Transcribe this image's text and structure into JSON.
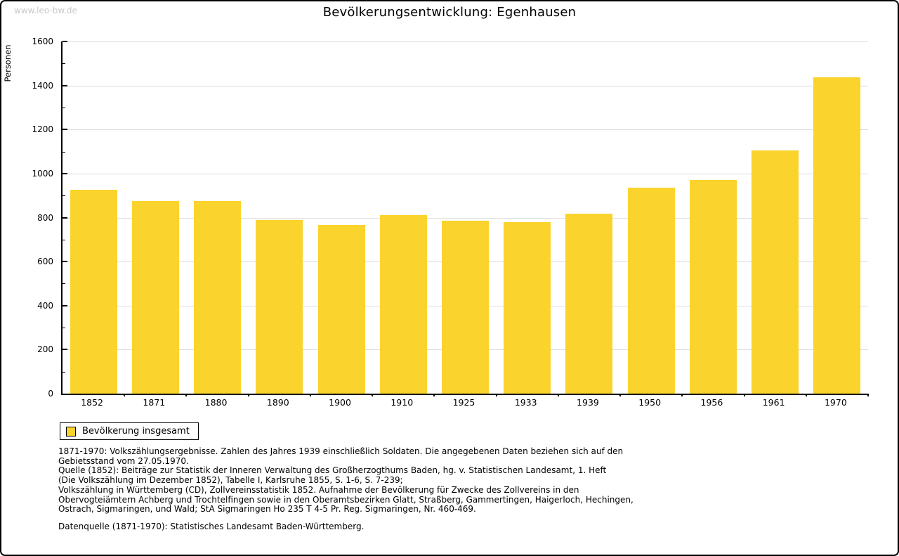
{
  "page": {
    "watermark": "www.leo-bw.de"
  },
  "chart_data": {
    "type": "bar",
    "title": "Bevölkerungsentwicklung: Egenhausen",
    "xlabel": "",
    "ylabel": "Personen",
    "categories": [
      "1852",
      "1871",
      "1880",
      "1890",
      "1900",
      "1910",
      "1925",
      "1933",
      "1939",
      "1950",
      "1956",
      "1961",
      "1970"
    ],
    "values": [
      925,
      875,
      875,
      790,
      765,
      812,
      786,
      780,
      818,
      937,
      971,
      1105,
      1437
    ],
    "ylim": [
      0,
      1600
    ],
    "ytick_interval": 200,
    "ytick_minor_interval": 100,
    "grid": "horizontal-only",
    "legend_position": "bottom-left",
    "bar_color": "#fbd32d",
    "gridline_color": "#dcdcdc",
    "legend": {
      "label": "Bevölkerung insgesamt"
    }
  },
  "footnotes": {
    "lines": [
      "1871-1970: Volkszählungsergebnisse. Zahlen des Jahres 1939 einschließlich Soldaten. Die angegebenen Daten beziehen sich auf den",
      "Gebietsstand vom 27.05.1970.",
      "Quelle (1852): Beiträge zur Statistik der Inneren Verwaltung des Großherzogthums Baden, hg. v. Statistischen Landesamt, 1. Heft",
      "(Die Volkszählung im Dezember 1852), Tabelle I, Karlsruhe 1855, S. 1-6, S. 7-239;",
      "Volkszählung in Württemberg (CD), Zollvereinsstatistik 1852. Aufnahme der Bevölkerung für Zwecke des Zollvereins in den",
      "Obervogteiämtern Achberg und Trochtelfingen sowie in den Oberamtsbezirken Glatt, Straßberg, Gammertingen, Haigerloch, Hechingen,",
      "Ostrach, Sigmaringen, und Wald; StA Sigmaringen Ho 235 T 4-5 Pr. Reg. Sigmaringen, Nr. 460-469."
    ],
    "datasource": "Datenquelle (1871-1970): Statistisches Landesamt Baden-Württemberg."
  }
}
